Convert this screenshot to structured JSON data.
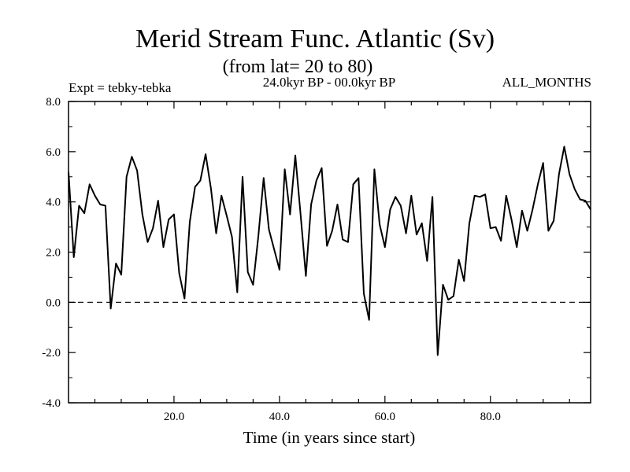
{
  "chart_data": {
    "type": "line",
    "title": "Merid Stream Func. Atlantic (Sv)",
    "subtitle": "(from lat= 20 to 80)",
    "left_note": "Expt = tebky-tebka",
    "center_note": "24.0kyr BP - 00.0kyr BP",
    "right_note": "ALL_MONTHS",
    "xlabel": "Time (in years since start)",
    "ylabel": "",
    "xlim": [
      0,
      99
    ],
    "ylim": [
      -4.0,
      8.0
    ],
    "xticks": [
      20,
      40,
      60,
      80
    ],
    "xtick_labels": [
      "20.0",
      "40.0",
      "60.0",
      "80.0"
    ],
    "yticks": [
      -4,
      -2,
      0,
      2,
      4,
      6,
      8
    ],
    "ytick_labels": [
      "-4.0",
      "-2.0",
      "0.0",
      "2.0",
      "4.0",
      "6.0",
      "8.0"
    ],
    "reference_line": 0.0,
    "grid": false,
    "x": [
      0,
      1,
      2,
      3,
      4,
      5,
      6,
      7,
      8,
      9,
      10,
      11,
      12,
      13,
      14,
      15,
      16,
      17,
      18,
      19,
      20,
      21,
      22,
      23,
      24,
      25,
      26,
      27,
      28,
      29,
      30,
      31,
      32,
      33,
      34,
      35,
      36,
      37,
      38,
      39,
      40,
      41,
      42,
      43,
      44,
      45,
      46,
      47,
      48,
      49,
      50,
      51,
      52,
      53,
      54,
      55,
      56,
      57,
      58,
      59,
      60,
      61,
      62,
      63,
      64,
      65,
      66,
      67,
      68,
      69,
      70,
      71,
      72,
      73,
      74,
      75,
      76,
      77,
      78,
      79,
      80,
      81,
      82,
      83,
      84,
      85,
      86,
      87,
      88,
      89,
      90,
      91,
      92,
      93,
      94,
      95,
      96,
      97,
      98,
      99
    ],
    "values": [
      5.2,
      1.8,
      3.85,
      3.55,
      4.7,
      4.25,
      3.9,
      3.85,
      -0.25,
      1.55,
      1.1,
      5.0,
      5.8,
      5.25,
      3.5,
      2.4,
      2.95,
      4.05,
      2.2,
      3.3,
      3.5,
      1.15,
      0.15,
      3.2,
      4.6,
      4.85,
      5.9,
      4.55,
      2.75,
      4.25,
      3.45,
      2.6,
      0.4,
      5.0,
      1.2,
      0.7,
      2.65,
      4.95,
      2.9,
      2.1,
      1.3,
      5.3,
      3.5,
      5.85,
      3.5,
      1.05,
      3.9,
      4.85,
      5.35,
      2.25,
      2.85,
      3.9,
      2.5,
      2.4,
      4.7,
      4.95,
      0.35,
      -0.7,
      5.3,
      3.1,
      2.2,
      3.7,
      4.2,
      3.85,
      2.75,
      4.25,
      2.7,
      3.15,
      1.65,
      4.2,
      -2.1,
      0.7,
      0.1,
      0.25,
      1.7,
      0.85,
      3.15,
      4.25,
      4.2,
      4.3,
      2.95,
      3.0,
      2.45,
      4.25,
      3.3,
      2.2,
      3.65,
      2.85,
      3.7,
      4.7,
      5.55,
      2.85,
      3.25,
      5.1,
      6.2,
      5.1,
      4.5,
      4.1,
      4.05,
      3.7
    ]
  }
}
